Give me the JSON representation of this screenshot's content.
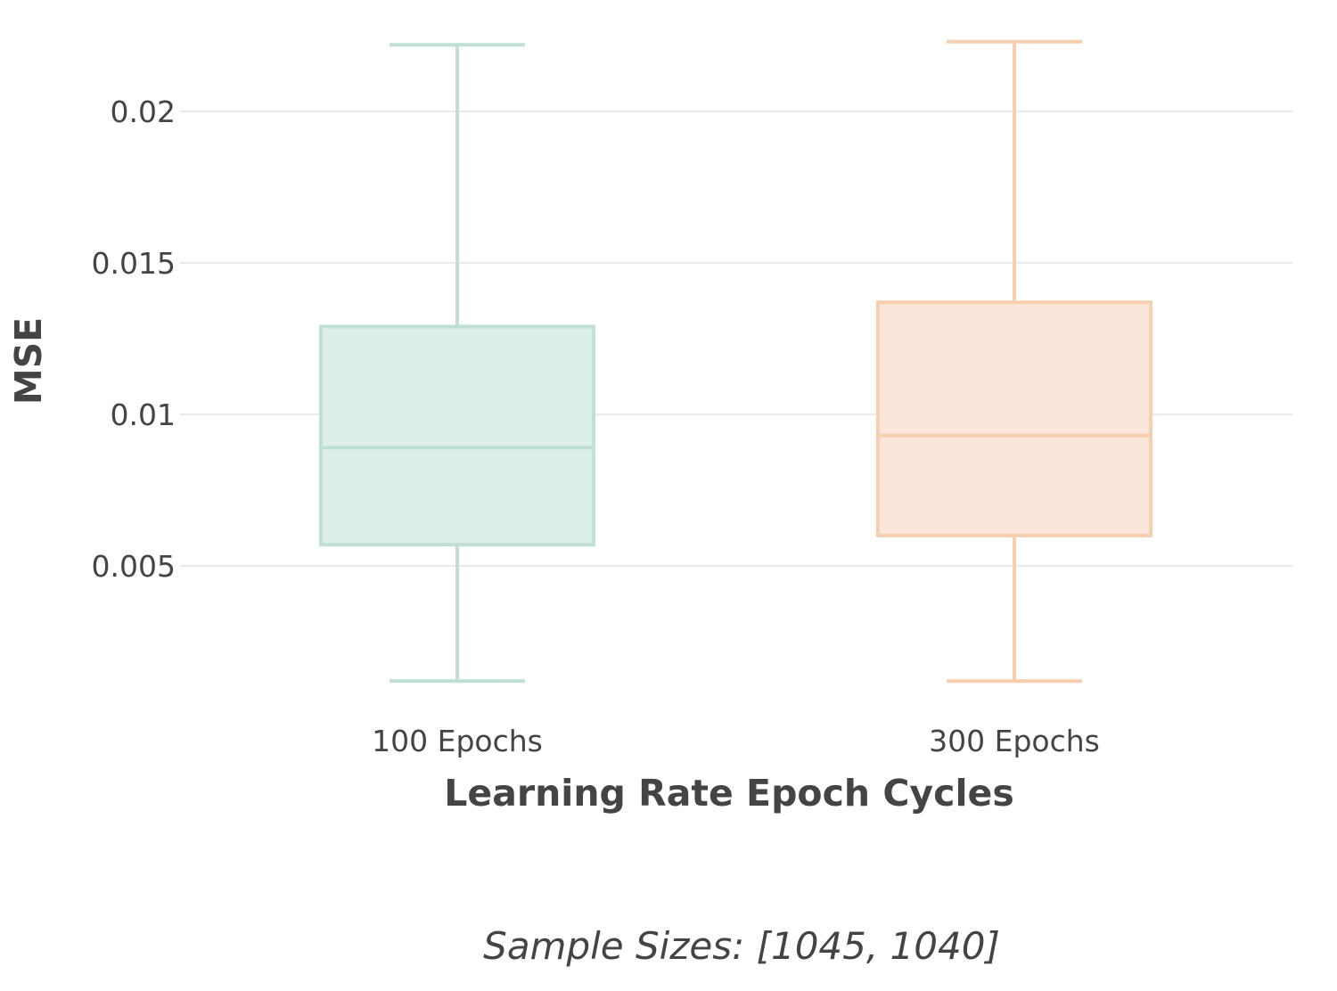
{
  "chart_data": {
    "type": "box",
    "xlabel": "Learning Rate Epoch Cycles",
    "ylabel": "MSE",
    "caption": "Sample Sizes: [1045, 1040]",
    "yticks": [
      {
        "value": 0.005,
        "label": "0.005"
      },
      {
        "value": 0.01,
        "label": "0.01"
      },
      {
        "value": 0.015,
        "label": "0.015"
      },
      {
        "value": 0.02,
        "label": "0.02"
      }
    ],
    "ylim": [
      0.0007,
      0.0233
    ],
    "grid": true,
    "legend": "none",
    "series": [
      {
        "category": "100 Epochs",
        "min": 0.0012,
        "q1": 0.0057,
        "median": 0.0089,
        "q3": 0.0129,
        "max": 0.0222,
        "color": "#bfe0d2",
        "fill": "#deefe7"
      },
      {
        "category": "300 Epochs",
        "min": 0.0012,
        "q1": 0.006,
        "median": 0.0093,
        "q3": 0.0137,
        "max": 0.0223,
        "color": "#f7cfae",
        "fill": "#fae6da"
      }
    ]
  }
}
